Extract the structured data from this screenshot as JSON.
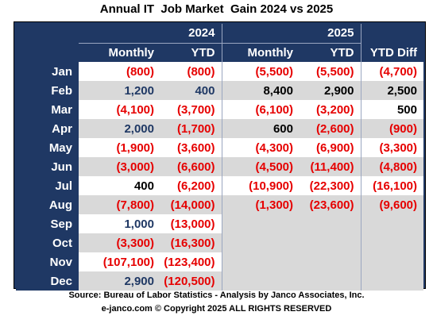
{
  "title": "Annual IT  Job Market  Gain 2024 vs 2025",
  "headers": {
    "year_2024": "2024",
    "year_2025": "2025",
    "monthly": "Monthly",
    "ytd": "YTD",
    "ytd_diff": "YTD Diff"
  },
  "rows": [
    {
      "month": "Jan",
      "m24": "(800)",
      "y24": "(800)",
      "m25": "(5,500)",
      "y25": "(5,500)",
      "diff": "(4,700)"
    },
    {
      "month": "Feb",
      "m24": "1,200",
      "y24": "400",
      "m25": "8,400",
      "y25": "2,900",
      "diff": "2,500"
    },
    {
      "month": "Mar",
      "m24": "(4,100)",
      "y24": "(3,700)",
      "m25": "(6,100)",
      "y25": "(3,200)",
      "diff": "500"
    },
    {
      "month": "Apr",
      "m24": "2,000",
      "y24": "(1,700)",
      "m25": "600",
      "y25": "(2,600)",
      "diff": "(900)"
    },
    {
      "month": "May",
      "m24": "(1,900)",
      "y24": "(3,600)",
      "m25": "(4,300)",
      "y25": "(6,900)",
      "diff": "(3,300)"
    },
    {
      "month": "Jun",
      "m24": "(3,000)",
      "y24": "(6,600)",
      "m25": "(4,500)",
      "y25": "(11,400)",
      "diff": "(4,800)"
    },
    {
      "month": "Jul",
      "m24": "400",
      "y24": "(6,200)",
      "m25": "(10,900)",
      "y25": "(22,300)",
      "diff": "(16,100)"
    },
    {
      "month": "Aug",
      "m24": "(7,800)",
      "y24": "(14,000)",
      "m25": "(1,300)",
      "y25": "(23,600)",
      "diff": "(9,600)"
    },
    {
      "month": "Sep",
      "m24": "1,000",
      "y24": "(13,000)",
      "m25": "",
      "y25": "",
      "diff": ""
    },
    {
      "month": "Oct",
      "m24": "(3,300)",
      "y24": "(16,300)",
      "m25": "",
      "y25": "",
      "diff": ""
    },
    {
      "month": "Nov",
      "m24": "(107,100)",
      "y24": "(123,400)",
      "m25": "",
      "y25": "",
      "diff": ""
    },
    {
      "month": "Dec",
      "m24": "2,900",
      "y24": "(120,500)",
      "m25": "",
      "y25": "",
      "diff": ""
    }
  ],
  "footer": {
    "source": "Source: Bureau of Labor Statistics - Analysis by Janco Associates, Inc.",
    "copyright": "e-janco.com © Copyright 2025 ALL RIGHTS RESERVED"
  }
}
